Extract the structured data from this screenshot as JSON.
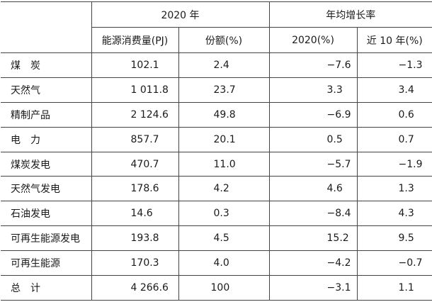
{
  "header": {
    "group_2020": "2020 年",
    "group_growth": "年均增长率",
    "col_consumption": "能源消费量(PJ)",
    "col_share": "份额(%)",
    "col_growth_2020": "2020(%)",
    "col_growth_10y": "近 10 年(%)"
  },
  "rows": [
    {
      "name": "煤　炭",
      "consumption": "102.1",
      "share": "2.4",
      "growth_2020": "−7.6",
      "growth_10y": "−1.3"
    },
    {
      "name": "天然气",
      "consumption": "1 011.8",
      "share": "23.7",
      "growth_2020": "3.3",
      "growth_10y": "3.4"
    },
    {
      "name": "精制产品",
      "consumption": "2 124.6",
      "share": "49.8",
      "growth_2020": "−6.9",
      "growth_10y": "0.6"
    },
    {
      "name": "电　力",
      "consumption": "857.7",
      "share": "20.1",
      "growth_2020": "0.5",
      "growth_10y": "0.7"
    },
    {
      "name": "煤炭发电",
      "consumption": "470.7",
      "share": "11.0",
      "growth_2020": "−5.7",
      "growth_10y": "−1.9"
    },
    {
      "name": "天然气发电",
      "consumption": "178.6",
      "share": "4.2",
      "growth_2020": "4.6",
      "growth_10y": "1.3"
    },
    {
      "name": "石油发电",
      "consumption": "14.6",
      "share": "0.3",
      "growth_2020": "−8.4",
      "growth_10y": "4.3"
    },
    {
      "name": "可再生能源发电",
      "consumption": "193.8",
      "share": "4.5",
      "growth_2020": "15.2",
      "growth_10y": "9.5"
    },
    {
      "name": "可再生能源",
      "consumption": "170.3",
      "share": "4.0",
      "growth_2020": "−4.2",
      "growth_10y": "−0.7"
    },
    {
      "name": "总　计",
      "consumption": "4 266.6",
      "share": "100",
      "growth_2020": "−3.1",
      "growth_10y": "1.1"
    }
  ]
}
